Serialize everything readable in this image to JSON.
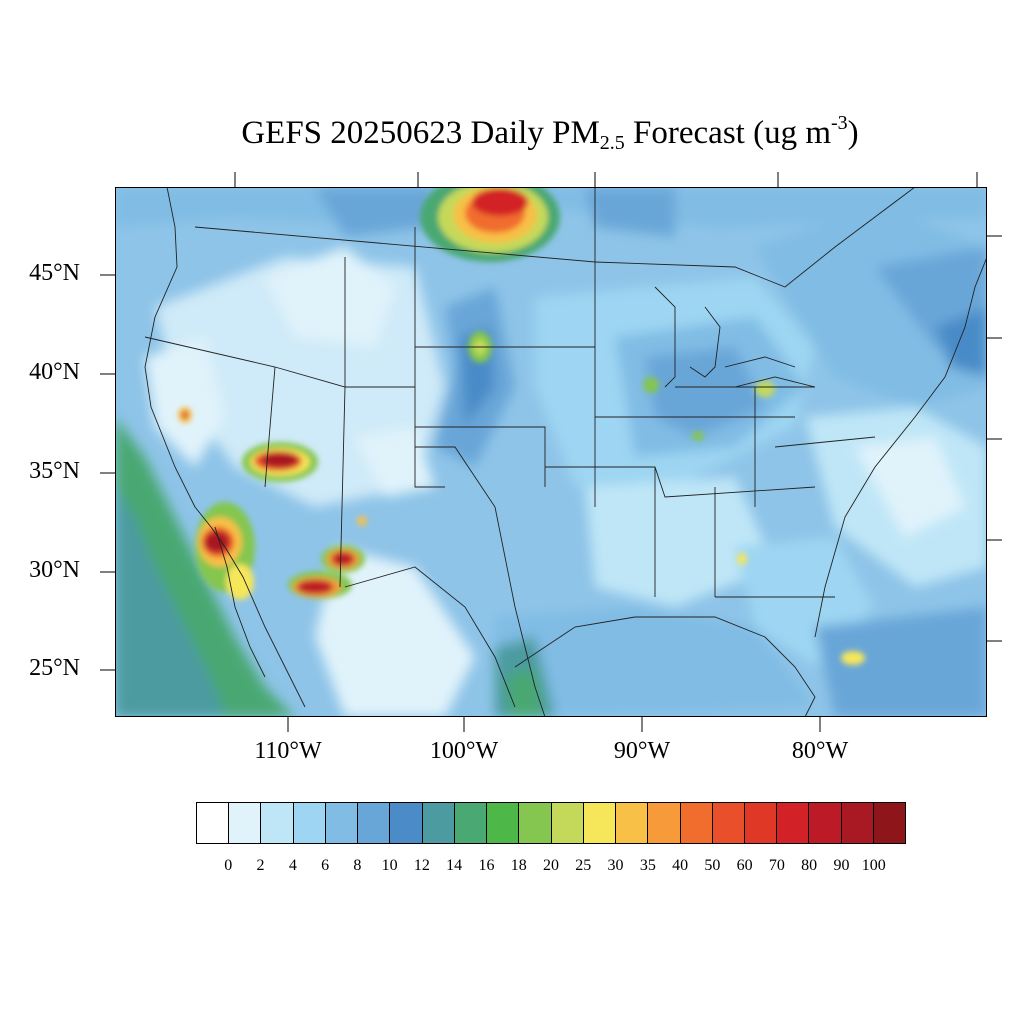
{
  "title": {
    "prefix": "GEFS 20250623 Daily PM",
    "subscript": "2.5",
    "middle": " Forecast (ug m",
    "superscript": "-3",
    "suffix": ")"
  },
  "map": {
    "lat_labels": [
      "45°N",
      "40°N",
      "35°N",
      "30°N",
      "25°N"
    ],
    "lon_labels": [
      "110°W",
      "100°W",
      "90°W",
      "80°W"
    ]
  },
  "colorbar": {
    "colors": [
      "#ffffff",
      "#e0f3fb",
      "#bfe6f7",
      "#9dd5f2",
      "#80bce4",
      "#69a6d8",
      "#4a8bc8",
      "#4b9ba0",
      "#4aa872",
      "#4db848",
      "#84c650",
      "#c4d95a",
      "#f6e65a",
      "#f8c047",
      "#f79a3a",
      "#f16d2e",
      "#e84f2a",
      "#df3826",
      "#d32128",
      "#bd1a27",
      "#a81923",
      "#8e1519"
    ],
    "labels": [
      "0",
      "2",
      "4",
      "6",
      "8",
      "10",
      "12",
      "14",
      "16",
      "18",
      "20",
      "25",
      "30",
      "35",
      "40",
      "50",
      "60",
      "70",
      "80",
      "90",
      "100"
    ]
  }
}
